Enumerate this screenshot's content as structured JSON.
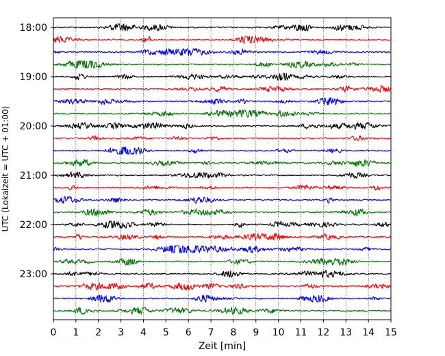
{
  "chart_data": {
    "type": "line",
    "title": "",
    "xlabel": "Zeit  [min]",
    "ylabel": "UTC (Lokalzeit = UTC + 01:00)",
    "xlim": [
      0,
      15
    ],
    "xticks": [
      "0",
      "1",
      "2",
      "3",
      "4",
      "5",
      "6",
      "7",
      "8",
      "9",
      "10",
      "11",
      "12",
      "13",
      "14",
      "15"
    ],
    "yticks": [
      "18:00",
      "19:00",
      "20:00",
      "21:00",
      "22:00",
      "23:00"
    ],
    "row_minutes": 15,
    "start_row_time": "18:00",
    "row_count": 24,
    "row_colors": [
      "#000000",
      "#ff0000",
      "#0000ff",
      "#007700"
    ],
    "grid": true
  }
}
